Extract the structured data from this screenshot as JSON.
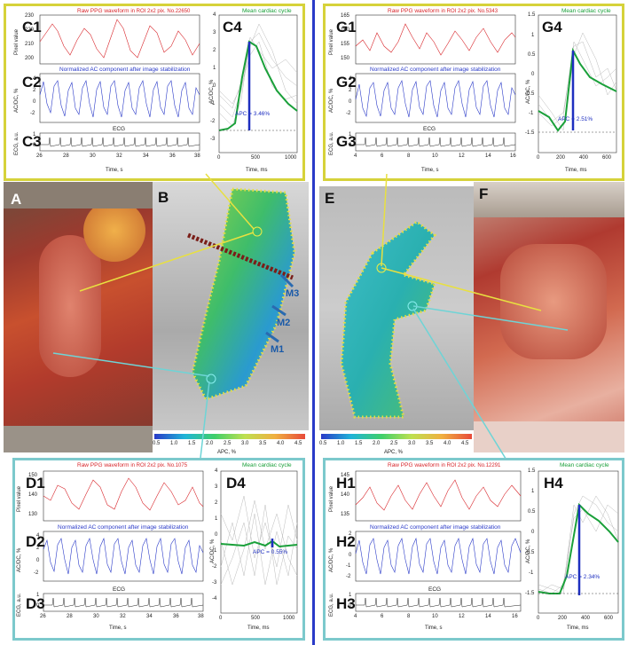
{
  "panels": {
    "C1": "C1",
    "C2": "C2",
    "C3": "C3",
    "C4": "C4",
    "G1": "G1",
    "G2": "G2",
    "G3": "G3",
    "G4": "G4",
    "D1": "D1",
    "D2": "D2",
    "D3": "D3",
    "D4": "D4",
    "H1": "H1",
    "H2": "H2",
    "H3": "H3",
    "H4": "H4",
    "A": "A",
    "B": "B",
    "E": "E",
    "F": "F"
  },
  "labels": {
    "raw_ppg": "Raw PPG waveform",
    "roi_c": "in ROI 2x2 pix. No.22650",
    "roi_g": "in ROI 2x2 pix. No.5343",
    "roi_d": "in ROI 2x2 pix. No.1075",
    "roi_h": "in ROI 2x2 pix. No.12291",
    "normalized": "Normalized AC component after image stabilization",
    "mean_cycle": "Mean cardiac cycle",
    "ecg": "ECG",
    "pixel_value": "Pixel value",
    "acdc": "AC/DC, %",
    "ecg_au": "ECG, a.u.",
    "time_s": "Time, s",
    "time_ms": "Time, ms",
    "apc_label": "APC, %",
    "apc_c": "APC = 3.46%",
    "apc_g": "APC = 2.51%",
    "apc_d": "APC = 0.55%",
    "apc_h": "APC = 2.34%",
    "m1": "M1",
    "m2": "M2",
    "m3": "M3"
  },
  "ticks": {
    "c1_y": [
      "230",
      "220",
      "210",
      "200"
    ],
    "g1_y": [
      "165",
      "160",
      "155",
      "150"
    ],
    "d1_y": [
      "150",
      "140",
      "130"
    ],
    "h1_y": [
      "145",
      "140",
      "135"
    ],
    "ac_y": [
      "4",
      "2",
      "0",
      "-2"
    ],
    "h2_y": [
      "2",
      "1",
      "0",
      "-1",
      "-2"
    ],
    "ecg_y": [
      "1",
      "0"
    ],
    "cd_x": [
      "26",
      "28",
      "30",
      "32",
      "34",
      "36",
      "38"
    ],
    "gh_x": [
      "4",
      "6",
      "8",
      "10",
      "12",
      "14",
      "16"
    ],
    "c4_y": [
      "4",
      "3",
      "2",
      "1",
      "0",
      "-1",
      "-2",
      "-3"
    ],
    "c4_x": [
      "0",
      "500",
      "1000"
    ],
    "g4_y": [
      "1.5",
      "1",
      "0.5",
      "0",
      "-0.5",
      "-1",
      "-1.5"
    ],
    "g4_x": [
      "0",
      "200",
      "400",
      "600"
    ],
    "d4_y": [
      "4",
      "3",
      "2",
      "1",
      "0",
      "-1",
      "-2",
      "-3",
      "-4"
    ],
    "d4_x": [
      "0",
      "500",
      "1000"
    ],
    "h4_y": [
      "1.5",
      "1",
      "0.5",
      "0",
      "-0.5",
      "-1",
      "-1.5"
    ],
    "h4_x": [
      "0",
      "200",
      "400",
      "600"
    ],
    "cb_b": [
      "0.5",
      "1.0",
      "1.5",
      "2.0",
      "2.5",
      "3.0",
      "3.5",
      "4.0",
      "4.5"
    ],
    "cb_e": [
      "0.5",
      "1.0",
      "1.5",
      "2.0",
      "2.5",
      "3.0",
      "3.5",
      "4.0",
      "4.5"
    ]
  },
  "colors": {
    "yellow_frame": "#d6d23a",
    "cyan_frame": "#7cc9cc",
    "raw": "#d8262b",
    "ac": "#2a3ac8",
    "mean": "#1aa03a",
    "divider": "#2a3ac8"
  }
}
